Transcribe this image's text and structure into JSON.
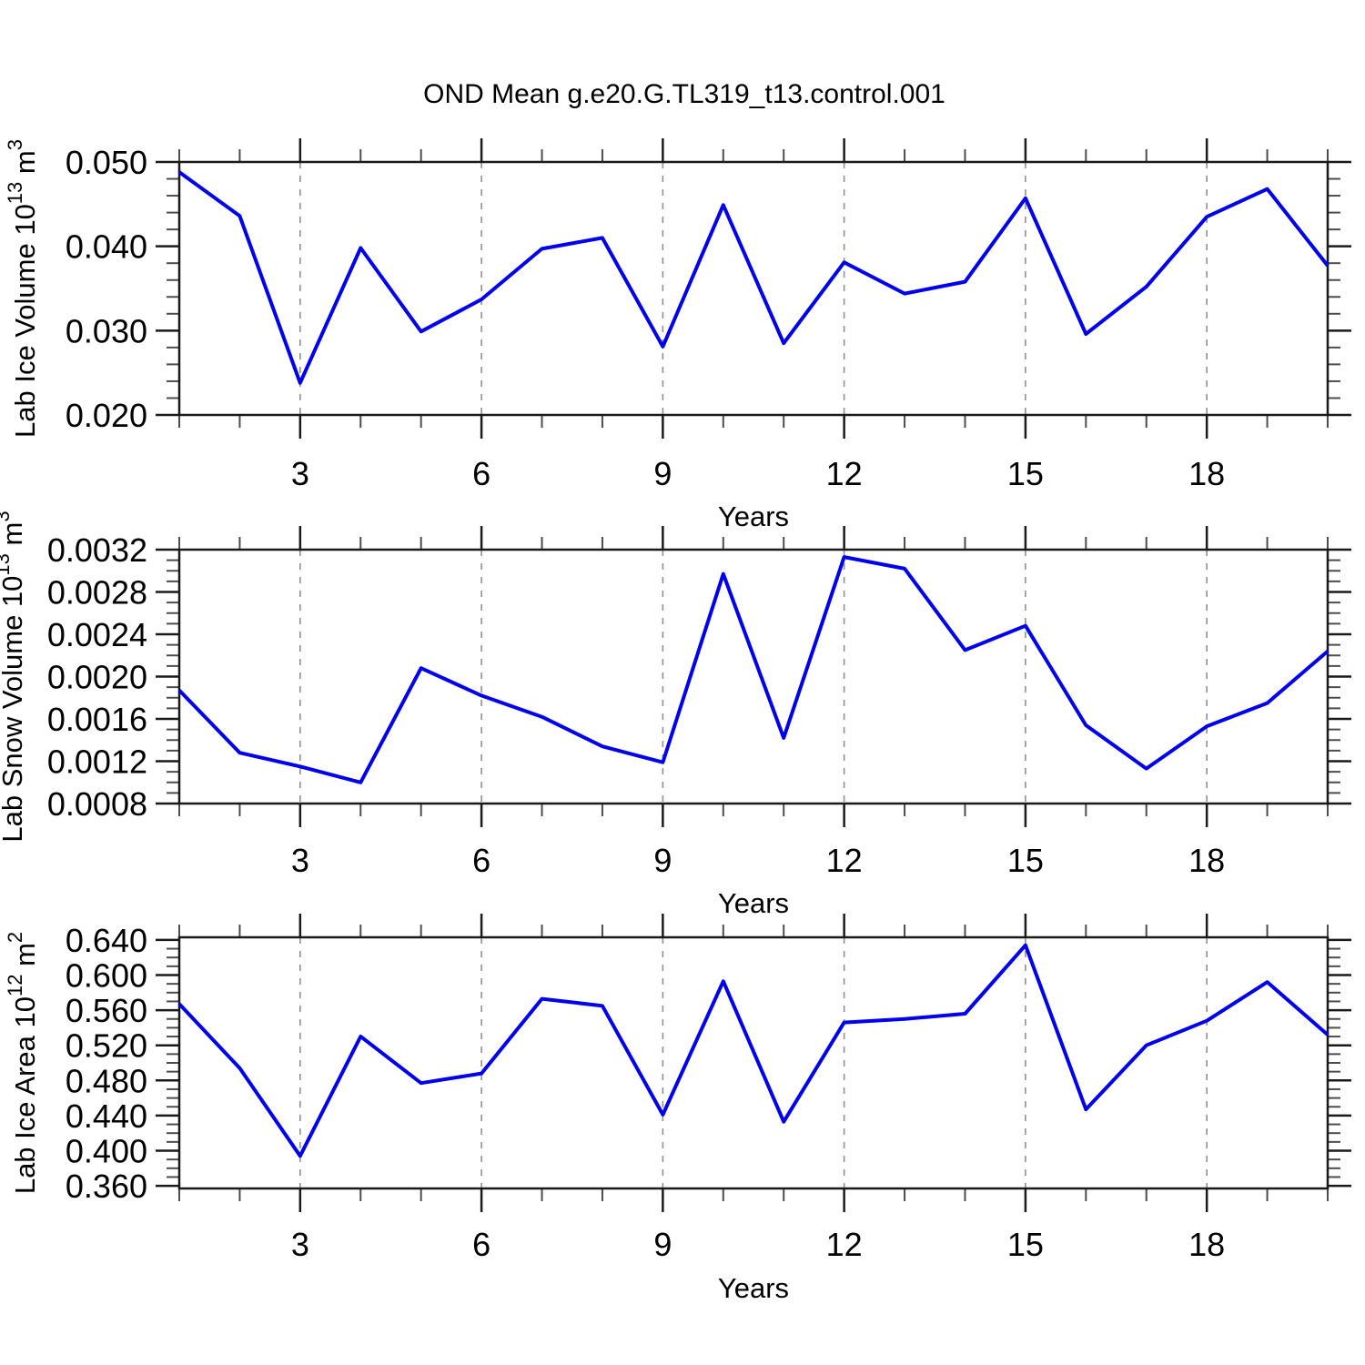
{
  "title": "OND Mean g.e20.G.TL319_t13.control.001",
  "line_color": "#0000ee",
  "grid_color": "#909090",
  "frame_color": "#1a1a1a",
  "minor_tick_color": "#4d4d4d",
  "chart_data": [
    {
      "type": "line",
      "name": "lab-ice-volume",
      "ylabel": {
        "text": "Lab Ice Volume 10",
        "exp": "13",
        "unit": " m",
        "unit_exp": "3"
      },
      "xlabel": "Years",
      "x": [
        1,
        2,
        3,
        4,
        5,
        6,
        7,
        8,
        9,
        10,
        11,
        12,
        13,
        14,
        15,
        16,
        17,
        18,
        19,
        20
      ],
      "values": [
        0.0488,
        0.0436,
        0.0238,
        0.0398,
        0.0299,
        0.0337,
        0.0397,
        0.041,
        0.0281,
        0.0449,
        0.0285,
        0.0381,
        0.0344,
        0.0358,
        0.0457,
        0.0296,
        0.0352,
        0.0435,
        0.0468,
        0.0377
      ],
      "xlim": [
        1,
        20
      ],
      "ylim": [
        0.02,
        0.05
      ],
      "xticks": [
        3,
        6,
        9,
        12,
        15,
        18
      ],
      "xtick_labels": [
        "3",
        "6",
        "9",
        "12",
        "15",
        "18"
      ],
      "xminor_step": 1,
      "yticks": [
        0.02,
        0.03,
        0.04,
        0.05
      ],
      "ytick_labels": [
        "0.020",
        "0.030",
        "0.040",
        "0.050"
      ],
      "yminor_step": 0.002,
      "grid": "vertical-dashed",
      "legend": "none"
    },
    {
      "type": "line",
      "name": "lab-snow-volume",
      "ylabel": {
        "text": "Lab Snow Volume 10",
        "exp": "13",
        "unit": " m",
        "unit_exp": "3"
      },
      "xlabel": "Years",
      "x": [
        1,
        2,
        3,
        4,
        5,
        6,
        7,
        8,
        9,
        10,
        11,
        12,
        13,
        14,
        15,
        16,
        17,
        18,
        19,
        20
      ],
      "values": [
        0.00187,
        0.00128,
        0.00115,
        0.001,
        0.00208,
        0.00182,
        0.00162,
        0.00134,
        0.00119,
        0.00297,
        0.00142,
        0.00313,
        0.00302,
        0.00225,
        0.00248,
        0.00154,
        0.00113,
        0.00153,
        0.00175,
        0.00224
      ],
      "xlim": [
        1,
        20
      ],
      "ylim": [
        0.0008,
        0.0032
      ],
      "xticks": [
        3,
        6,
        9,
        12,
        15,
        18
      ],
      "xtick_labels": [
        "3",
        "6",
        "9",
        "12",
        "15",
        "18"
      ],
      "xminor_step": 1,
      "yticks": [
        0.0008,
        0.0012,
        0.0016,
        0.002,
        0.0024,
        0.0028,
        0.0032
      ],
      "ytick_labels": [
        "0.0008",
        "0.0012",
        "0.0016",
        "0.0020",
        "0.0024",
        "0.0028",
        "0.0032"
      ],
      "yminor_step": 0.0001,
      "grid": "vertical-dashed",
      "legend": "none"
    },
    {
      "type": "line",
      "name": "lab-ice-area",
      "ylabel": {
        "text": "Lab Ice Area 10",
        "exp": "12",
        "unit": " m",
        "unit_exp": "2"
      },
      "xlabel": "Years",
      "x": [
        1,
        2,
        3,
        4,
        5,
        6,
        7,
        8,
        9,
        10,
        11,
        12,
        13,
        14,
        15,
        16,
        17,
        18,
        19,
        20
      ],
      "values": [
        0.567,
        0.494,
        0.394,
        0.53,
        0.477,
        0.488,
        0.573,
        0.565,
        0.441,
        0.593,
        0.433,
        0.546,
        0.55,
        0.556,
        0.634,
        0.447,
        0.52,
        0.548,
        0.592,
        0.532
      ],
      "xlim": [
        1,
        20
      ],
      "ylim": [
        0.357,
        0.643
      ],
      "xticks": [
        3,
        6,
        9,
        12,
        15,
        18
      ],
      "xtick_labels": [
        "3",
        "6",
        "9",
        "12",
        "15",
        "18"
      ],
      "xminor_step": 1,
      "yticks": [
        0.36,
        0.4,
        0.44,
        0.48,
        0.52,
        0.56,
        0.6,
        0.64
      ],
      "ytick_labels": [
        "0.360",
        "0.400",
        "0.440",
        "0.480",
        "0.520",
        "0.560",
        "0.600",
        "0.640"
      ],
      "yminor_step": 0.01,
      "grid": "vertical-dashed",
      "legend": "none"
    }
  ]
}
